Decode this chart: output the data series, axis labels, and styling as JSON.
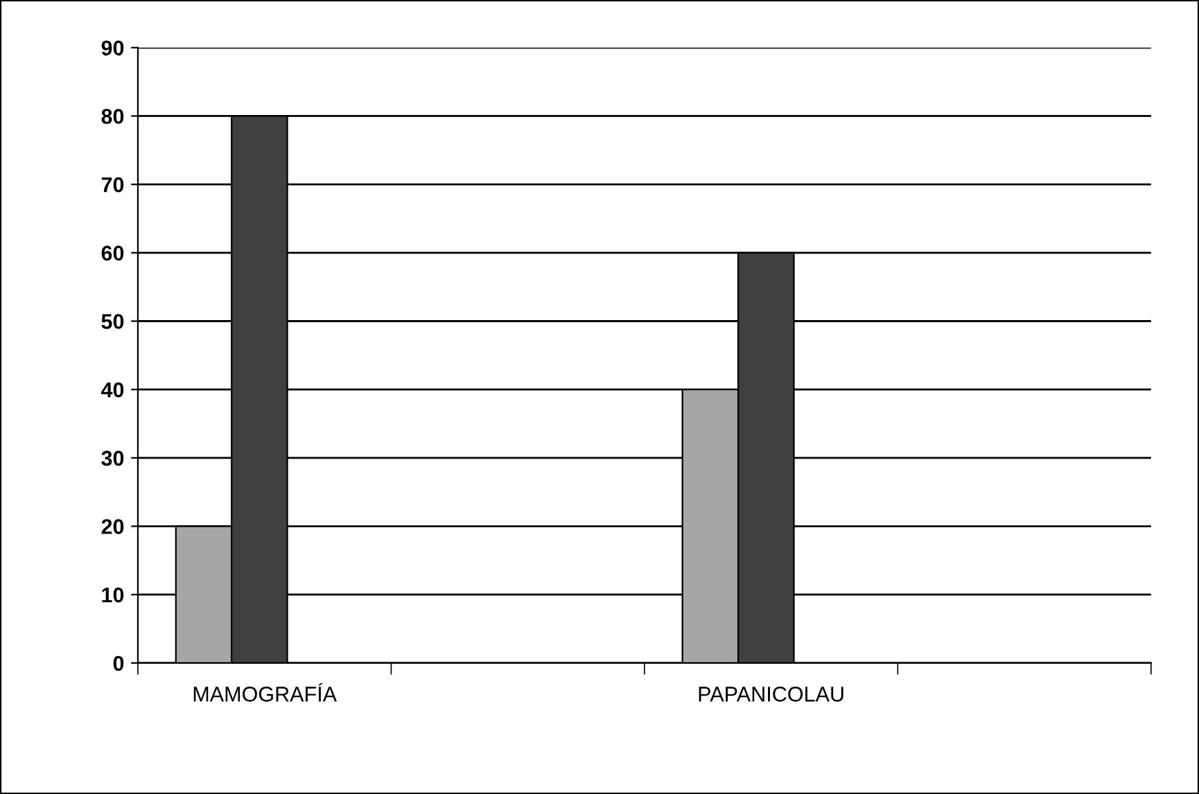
{
  "chart_data": {
    "type": "bar",
    "categories": [
      "MAMOGRAFÍA",
      null,
      "PAPANICOLAU",
      null
    ],
    "series": [
      {
        "color": "#a6a6a6",
        "values": [
          20,
          null,
          40,
          null
        ]
      },
      {
        "color": "#404040",
        "values": [
          80,
          null,
          60,
          null
        ]
      }
    ],
    "ylim": [
      0,
      90
    ],
    "yticks": [
      0,
      10,
      20,
      30,
      40,
      50,
      60,
      70,
      80,
      90
    ],
    "grid": "y",
    "legend": false
  }
}
